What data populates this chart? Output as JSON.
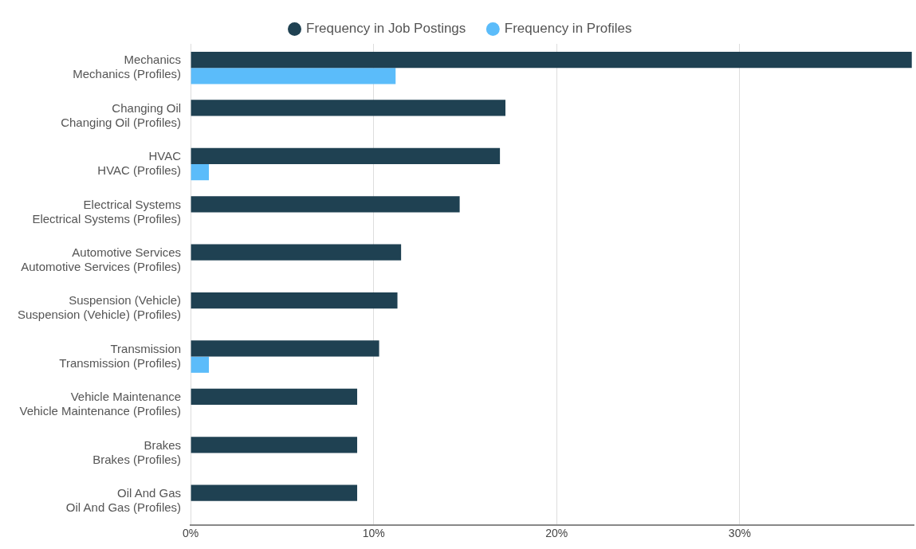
{
  "chart_data": {
    "type": "bar",
    "orientation": "horizontal",
    "categories": [
      "Mechanics\nMechanics (Profiles)",
      "Changing Oil\nChanging Oil (Profiles)",
      "HVAC\nHVAC (Profiles)",
      "Electrical Systems\nElectrical Systems (Profiles)",
      "Automotive Services\nAutomotive Services (Profiles)",
      "Suspension (Vehicle)\nSuspension (Vehicle) (Profiles)",
      "Transmission\nTransmission (Profiles)",
      "Vehicle Maintenance\nVehicle Maintenance (Profiles)",
      "Brakes\nBrakes (Profiles)",
      "Oil And Gas\nOil And Gas (Profiles)"
    ],
    "series": [
      {
        "name": "Frequency in Job Postings",
        "color": "#1f4152",
        "values": [
          39.4,
          17.2,
          16.9,
          14.7,
          11.5,
          11.3,
          10.3,
          9.1,
          9.1,
          9.1
        ]
      },
      {
        "name": "Frequency in Profiles",
        "color": "#5bbcfa",
        "values": [
          11.2,
          0,
          1.0,
          0,
          0,
          0,
          1.0,
          0,
          0,
          0
        ]
      }
    ],
    "xlim": [
      0,
      39.5
    ],
    "xticks": [
      {
        "value": 0,
        "label": "0%"
      },
      {
        "value": 10,
        "label": "10%"
      },
      {
        "value": 20,
        "label": "20%"
      },
      {
        "value": 30,
        "label": "30%"
      }
    ],
    "grid": "x",
    "legend": "top"
  }
}
